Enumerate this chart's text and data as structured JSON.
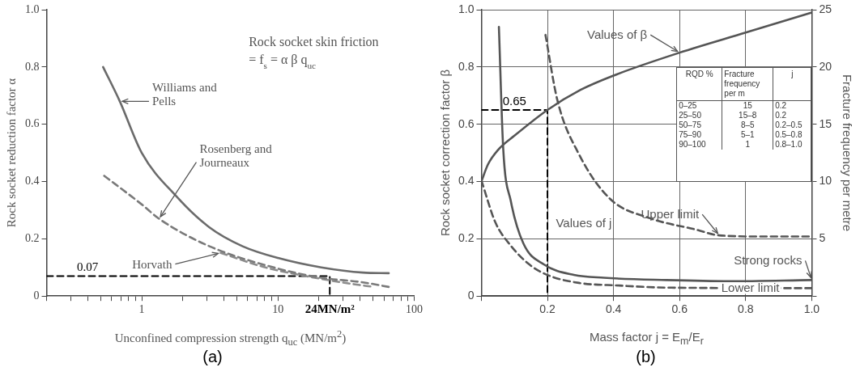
{
  "chart_data": [
    {
      "type": "line",
      "xlabel": "Unconfined compression strength q$_{uc}$ (MN/m$^{2}$)",
      "ylabel": "Rock socket reduction factor α",
      "log": "x",
      "grid": false,
      "legend": false,
      "marker": "none",
      "xlim": [
        0.2,
        100
      ],
      "ylim": [
        0,
        1
      ],
      "xticks": [
        {
          "value": 0.2,
          "label": null
        },
        {
          "value": 0.3,
          "label": null
        },
        {
          "value": 0.4,
          "label": null
        },
        {
          "value": 0.5,
          "label": null
        },
        {
          "value": 0.6,
          "label": null
        },
        {
          "value": 0.7,
          "label": null
        },
        {
          "value": 0.8,
          "label": null
        },
        {
          "value": 0.9,
          "label": null
        },
        1,
        {
          "value": 2,
          "label": null
        },
        {
          "value": 3,
          "label": null
        },
        {
          "value": 4,
          "label": null
        },
        {
          "value": 5,
          "label": null
        },
        {
          "value": 6,
          "label": null
        },
        {
          "value": 7,
          "label": null
        },
        {
          "value": 8,
          "label": null
        },
        {
          "value": 9,
          "label": null
        },
        10,
        {
          "value": 20,
          "label": null
        },
        {
          "value": 30,
          "label": null
        },
        {
          "value": 40,
          "label": null
        },
        {
          "value": 50,
          "label": null
        },
        {
          "value": 60,
          "label": null
        },
        {
          "value": 70,
          "label": null
        },
        {
          "value": 80,
          "label": null
        },
        {
          "value": 90,
          "label": null
        },
        100
      ],
      "yticks": [
        0,
        0.2,
        0.4,
        0.6,
        0.8,
        {
          "value": 1,
          "label": "1.0"
        }
      ],
      "series": [
        {
          "name": "Williams and Pells",
          "color": "#6b6b6b",
          "line_style": "solid",
          "x": [
            0.52,
            0.69,
            1,
            1.78,
            3.14,
            5.5,
            10,
            20.8,
            42,
            65
          ],
          "values": [
            0.8,
            0.68,
            0.5,
            0.35,
            0.24,
            0.174,
            0.133,
            0.1,
            0.082,
            0.08
          ]
        },
        {
          "name": "Rosenberg and Journeaux",
          "color": "#7a7a7a",
          "line_style": "dashed",
          "x": [
            0.53,
            1,
            1.34,
            3.14,
            10,
            20.8,
            42,
            65
          ],
          "values": [
            0.42,
            0.32,
            0.27,
            0.174,
            0.096,
            0.064,
            0.048,
            0.032
          ]
        },
        {
          "name": "Horvath",
          "color": "#8c8c8c",
          "line_style": "dashed",
          "x": [
            3.79,
            8.1,
            20.8,
            42,
            51
          ],
          "values": [
            0.151,
            0.1,
            0.06,
            0.037,
            0.032
          ]
        },
        {
          "color": "#000000",
          "line_style": "dashed",
          "x": [
            0.2,
            24,
            24
          ],
          "values": [
            0.07,
            0.07,
            0
          ]
        }
      ],
      "annotations": [
        "Rock socket skin friction",
        "= f$_{s}$ = α β q$_{uc}$",
        {
          "text": "0.07",
          "x": 0.4,
          "y": 0.07
        },
        {
          "text": "24MN/m²",
          "x": 24,
          "y": 0
        },
        "(a)"
      ]
    },
    {
      "type": "line",
      "xlabel": "Mass factor j = E$_{m}$/E$_{r}$",
      "ylabel": "Rock socket correction factor β",
      "y2label": "Fracture frequency per metre",
      "grid": true,
      "legend": false,
      "marker": "none",
      "xlim": [
        0,
        1
      ],
      "ylim": [
        0,
        1
      ],
      "y2lim": [
        0,
        25
      ],
      "xticks": [
        {
          "value": 0,
          "label": null
        },
        0.2,
        0.4,
        0.6,
        0.8,
        {
          "value": 1,
          "label": "1.0"
        }
      ],
      "yticks": [
        0,
        0.2,
        0.4,
        0.6,
        0.8,
        {
          "value": 1,
          "label": "1.0"
        }
      ],
      "y2ticks": [
        {
          "value": 0,
          "label": null
        },
        5,
        10,
        15,
        20,
        25
      ],
      "series": [
        {
          "name": "Values of β",
          "color": "#555555",
          "line_style": "solid",
          "x": [
            0,
            0.02,
            0.05,
            0.1,
            0.2,
            0.3,
            0.4,
            0.6,
            0.8,
            1.0
          ],
          "values": [
            0.4,
            0.46,
            0.51,
            0.56,
            0.65,
            0.72,
            0.77,
            0.85,
            0.92,
            0.99
          ]
        },
        {
          "name": "Strong rocks",
          "color": "#555555",
          "line_style": "solid",
          "axis": "y2",
          "x": [
            0.053,
            0.066,
            0.089,
            0.127,
            0.19,
            0.28,
            0.37,
            0.56,
            0.75,
            1.0
          ],
          "values": [
            23.5,
            12.9,
            8.3,
            4.6,
            2.75,
            1.85,
            1.6,
            1.4,
            1.3,
            1.4
          ]
        },
        {
          "name": "Upper limit",
          "color": "#555555",
          "line_style": "dashed",
          "axis": "y2",
          "x": [
            0.194,
            0.23,
            0.295,
            0.389,
            0.51,
            0.65,
            0.72,
            0.85,
            1.0
          ],
          "values": [
            22.8,
            17.1,
            12.4,
            8.5,
            6.8,
            5.8,
            5.3,
            5.2,
            5.2
          ]
        },
        {
          "name": "Lower limit",
          "color": "#555555",
          "line_style": "dashed",
          "axis": "y2",
          "x": [
            0,
            0.042,
            0.089,
            0.145,
            0.2,
            0.295,
            0.417,
            0.558,
            1.0
          ],
          "values": [
            10.1,
            6.45,
            4.4,
            2.76,
            1.84,
            1.15,
            0.92,
            0.74,
            0.69
          ]
        },
        {
          "color": "#000000",
          "line_style": "dashed",
          "x": [
            0,
            0.2,
            0.2
          ],
          "values": [
            0.65,
            0.65,
            0
          ]
        }
      ],
      "annotations": [
        {
          "text": "0.65",
          "x": 0.1,
          "y": 0.65
        },
        "Values of j",
        "RQD %",
        "Fracture frequency per m",
        "j",
        "0–25",
        "15",
        "0.2",
        "25–50",
        "15–8",
        "0.2",
        "50–75",
        "8–5",
        "0.2–0.5",
        "75–90",
        "5–1",
        "0.5–0.8",
        "90–100",
        "1",
        "0.8–1.0",
        "(b)"
      ]
    }
  ]
}
